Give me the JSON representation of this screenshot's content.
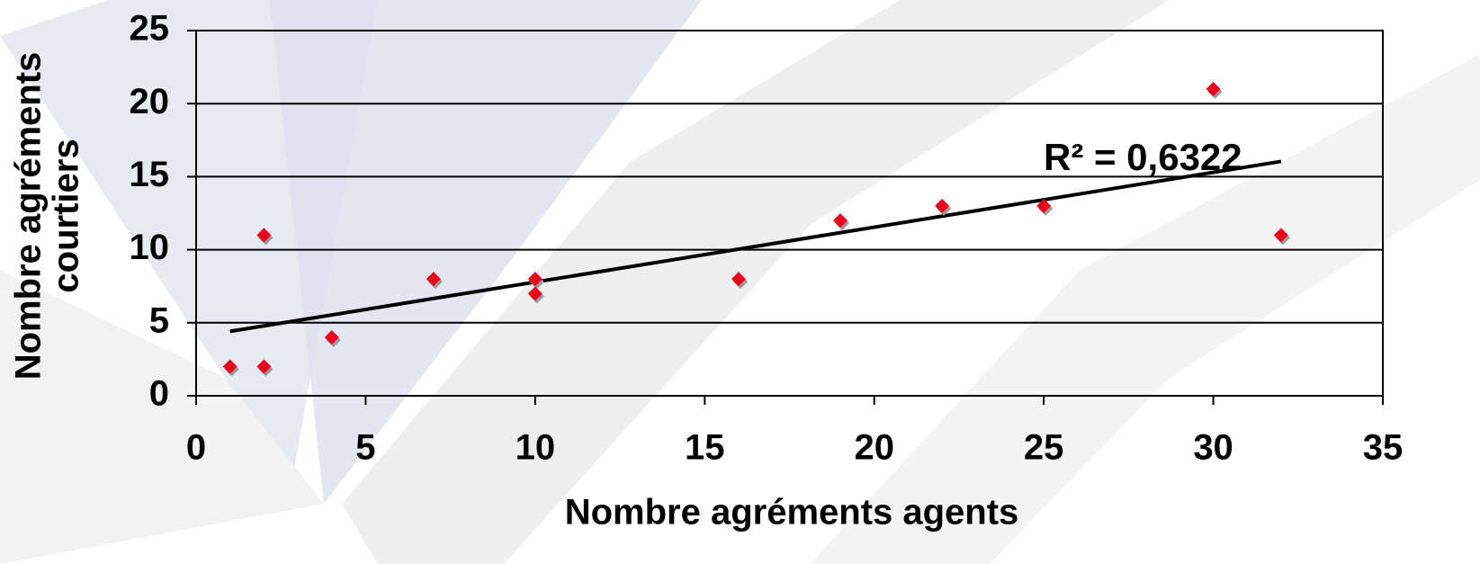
{
  "chart_data": {
    "type": "scatter",
    "xlabel": "Nombre agréments agents",
    "ylabel": [
      "Nombre agréments",
      "courtiers"
    ],
    "annotation": "R² = 0,6322",
    "trendline": "linear",
    "color": "#e8001c",
    "x": [
      1,
      2,
      2,
      4,
      7,
      10,
      10,
      16,
      19,
      22,
      25,
      30,
      32
    ],
    "values": [
      2,
      11,
      2,
      4,
      8,
      8,
      7,
      8,
      12,
      13,
      13,
      21,
      11
    ],
    "xlim": [
      0,
      35
    ],
    "xticks": [
      0,
      5,
      10,
      15,
      20,
      25,
      30,
      35
    ],
    "ylim": [
      0,
      25
    ],
    "yticks": [
      0,
      5,
      10,
      15,
      20,
      25
    ],
    "grid": true
  }
}
